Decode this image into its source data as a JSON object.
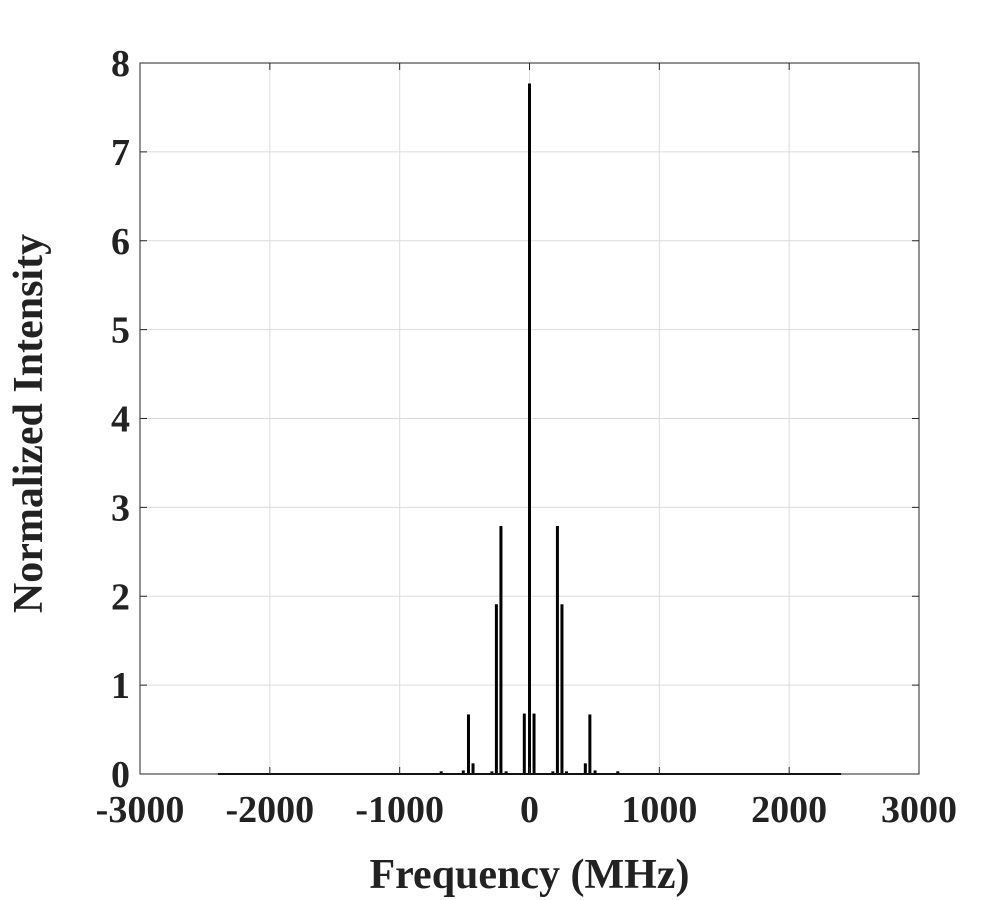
{
  "chart_data": {
    "type": "line",
    "title": "",
    "xlabel": "Frequency (MHz)",
    "ylabel": "Normalized Intensity",
    "xlim": [
      -3000,
      3000
    ],
    "ylim": [
      0,
      8
    ],
    "x_ticks": [
      -3000,
      -2000,
      -1000,
      0,
      1000,
      2000,
      3000
    ],
    "y_ticks": [
      0,
      1,
      2,
      3,
      4,
      5,
      6,
      7,
      8
    ],
    "x_tick_labels": [
      "-3000",
      "-2000",
      "-1000",
      "0",
      "1000",
      "2000",
      "3000"
    ],
    "y_tick_labels": [
      "0",
      "1",
      "2",
      "3",
      "4",
      "5",
      "6",
      "7",
      "8"
    ],
    "grid": true,
    "baseline_range": [
      -2400,
      2400
    ],
    "series": [
      {
        "color": "#000000",
        "peaks": [
          {
            "x": -680,
            "y": 0.03
          },
          {
            "x": -510,
            "y": 0.04
          },
          {
            "x": -470,
            "y": 0.67
          },
          {
            "x": -435,
            "y": 0.12
          },
          {
            "x": -290,
            "y": 0.03
          },
          {
            "x": -255,
            "y": 1.91
          },
          {
            "x": -220,
            "y": 2.79
          },
          {
            "x": -180,
            "y": 0.03
          },
          {
            "x": -40,
            "y": 0.68
          },
          {
            "x": 0,
            "y": 7.77
          },
          {
            "x": 35,
            "y": 0.68
          },
          {
            "x": 180,
            "y": 0.03
          },
          {
            "x": 215,
            "y": 2.79
          },
          {
            "x": 250,
            "y": 1.91
          },
          {
            "x": 285,
            "y": 0.03
          },
          {
            "x": 430,
            "y": 0.12
          },
          {
            "x": 465,
            "y": 0.67
          },
          {
            "x": 505,
            "y": 0.04
          },
          {
            "x": 680,
            "y": 0.03
          }
        ]
      }
    ]
  }
}
